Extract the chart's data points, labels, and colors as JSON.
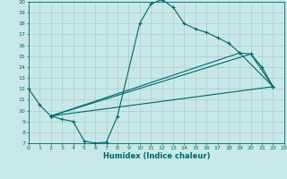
{
  "xlabel": "Humidex (Indice chaleur)",
  "bg_color": "#c8e8e8",
  "line_color": "#006666",
  "grid_color": "#aacccc",
  "xlim": [
    0,
    23
  ],
  "ylim": [
    7,
    20
  ],
  "xticks": [
    0,
    1,
    2,
    3,
    4,
    5,
    6,
    7,
    8,
    9,
    10,
    11,
    12,
    13,
    14,
    15,
    16,
    17,
    18,
    19,
    20,
    21,
    22,
    23
  ],
  "yticks": [
    7,
    8,
    9,
    10,
    11,
    12,
    13,
    14,
    15,
    16,
    17,
    18,
    19,
    20
  ],
  "curve1_x": [
    0,
    1,
    2,
    3,
    4,
    5,
    6,
    7,
    8,
    10,
    11,
    12,
    13,
    14,
    15,
    16,
    17,
    18,
    19,
    20,
    21,
    22
  ],
  "curve1_y": [
    12,
    10.5,
    9.5,
    9.2,
    9.0,
    7.2,
    7.0,
    7.1,
    9.5,
    18.0,
    19.8,
    20.2,
    19.5,
    18.0,
    17.5,
    17.2,
    16.7,
    16.2,
    15.3,
    15.2,
    14.0,
    12.2
  ],
  "line2_x": [
    2,
    22
  ],
  "line2_y": [
    9.5,
    12.2
  ],
  "line3_x": [
    2,
    19,
    22
  ],
  "line3_y": [
    9.5,
    15.3,
    12.2
  ],
  "line4_x": [
    2,
    20,
    22
  ],
  "line4_y": [
    9.5,
    15.2,
    12.2
  ]
}
